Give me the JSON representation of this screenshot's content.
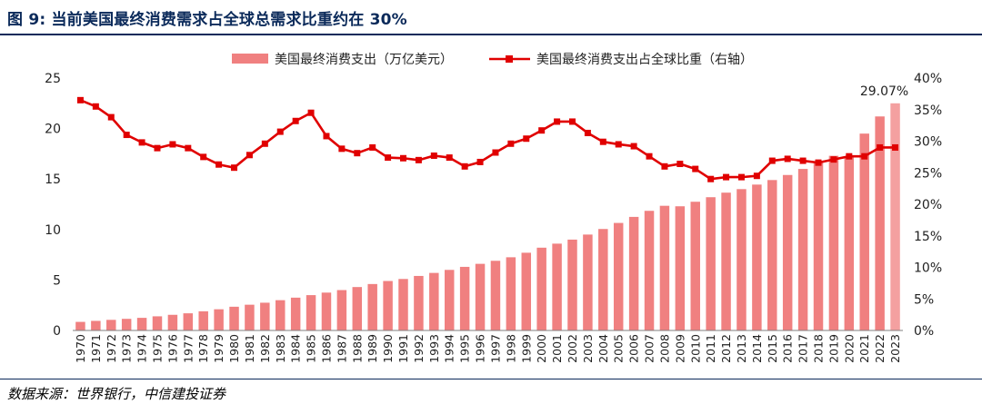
{
  "header": {
    "title": "图 9: 当前美国最终消费需求占全球总需求比重约在 30%"
  },
  "footer": {
    "source": "数据来源：世界银行，中信建投证券"
  },
  "chart_data": {
    "type": "bar",
    "categories": [
      "1970",
      "1971",
      "1972",
      "1973",
      "1974",
      "1975",
      "1976",
      "1977",
      "1978",
      "1979",
      "1980",
      "1981",
      "1982",
      "1983",
      "1984",
      "1985",
      "1986",
      "1987",
      "1988",
      "1989",
      "1990",
      "1991",
      "1992",
      "1993",
      "1994",
      "1995",
      "1996",
      "1997",
      "1998",
      "1999",
      "2000",
      "2001",
      "2002",
      "2003",
      "2004",
      "2005",
      "2006",
      "2007",
      "2008",
      "2009",
      "2010",
      "2011",
      "2012",
      "2013",
      "2014",
      "2015",
      "2016",
      "2017",
      "2018",
      "2019",
      "2020",
      "2021",
      "2022",
      "2023"
    ],
    "series": [
      {
        "name": "美国最终消费支出（万亿美元）",
        "type": "bar",
        "axis": "left",
        "color": "#f08080",
        "values": [
          0.85,
          0.95,
          1.05,
          1.15,
          1.25,
          1.4,
          1.55,
          1.7,
          1.9,
          2.1,
          2.35,
          2.55,
          2.75,
          3.0,
          3.25,
          3.5,
          3.75,
          4.0,
          4.3,
          4.6,
          4.9,
          5.1,
          5.4,
          5.7,
          6.0,
          6.3,
          6.6,
          6.9,
          7.25,
          7.7,
          8.2,
          8.6,
          9.0,
          9.5,
          10.05,
          10.65,
          11.25,
          11.85,
          12.35,
          12.3,
          12.75,
          13.2,
          13.65,
          14.0,
          14.45,
          14.9,
          15.4,
          16.0,
          16.7,
          17.3,
          17.2,
          19.5,
          21.2,
          22.5
        ]
      },
      {
        "name": "美国最终消费支出占全球比重（右轴）",
        "type": "line",
        "axis": "right",
        "color": "#e00000",
        "values": [
          36.5,
          35.5,
          33.8,
          31.0,
          29.8,
          28.9,
          29.5,
          28.9,
          27.5,
          26.3,
          25.8,
          27.8,
          29.6,
          31.5,
          33.2,
          34.5,
          30.8,
          28.8,
          28.1,
          29.0,
          27.4,
          27.3,
          27.0,
          27.7,
          27.4,
          26.0,
          26.7,
          28.2,
          29.6,
          30.4,
          31.7,
          33.1,
          33.1,
          31.3,
          29.9,
          29.5,
          29.2,
          27.6,
          26.0,
          26.4,
          25.6,
          24.0,
          24.3,
          24.3,
          24.5,
          26.9,
          27.2,
          26.9,
          26.6,
          27.1,
          27.6,
          27.6,
          29.0,
          29.0
        ]
      }
    ],
    "y_left": {
      "min": 0,
      "max": 25,
      "ticks": [
        0,
        5,
        10,
        15,
        20,
        25
      ]
    },
    "y_right": {
      "min": 0,
      "max": 40,
      "ticks": [
        "0%",
        "5%",
        "10%",
        "15%",
        "20%",
        "25%",
        "30%",
        "35%",
        "40%"
      ]
    },
    "annotation": {
      "text": "29.07%"
    },
    "legend_position": "top-center",
    "grid": false
  }
}
